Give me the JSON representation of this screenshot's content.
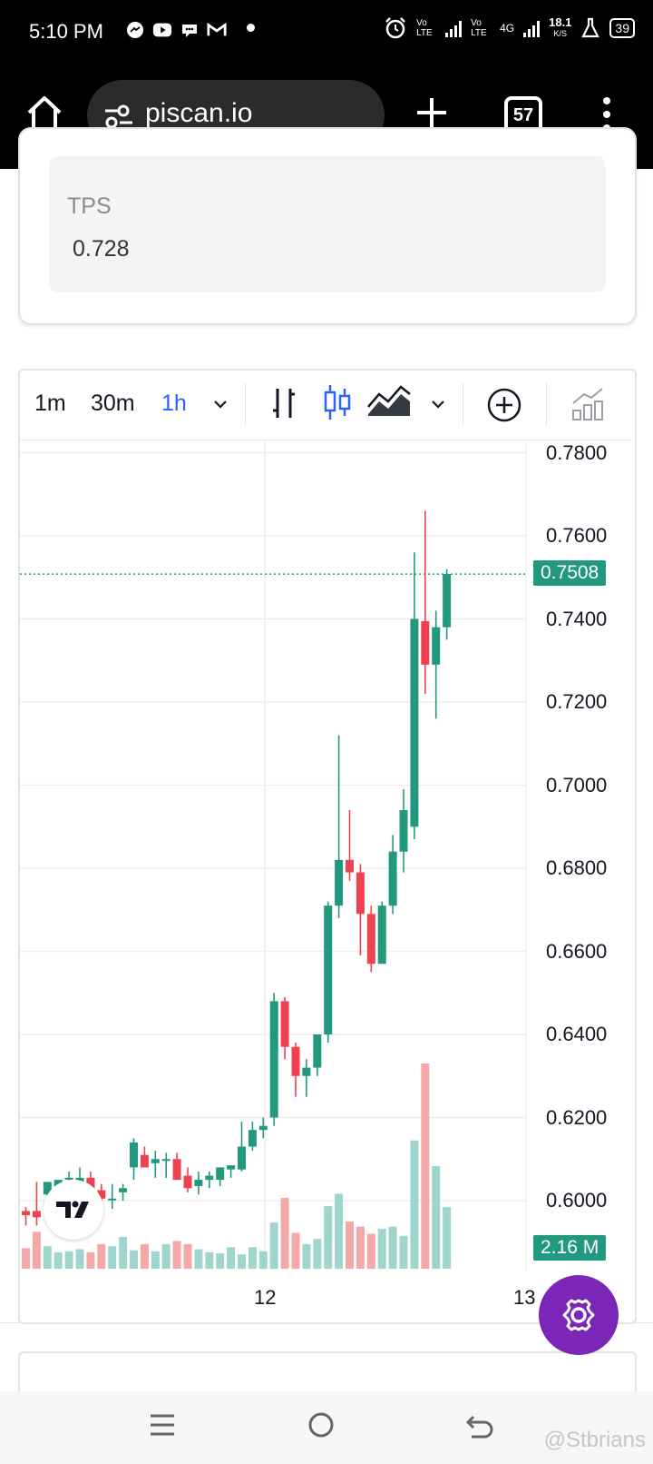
{
  "status_bar": {
    "time": "5:10 PM",
    "network1": "Vo LTE",
    "network2": "Vo LTE",
    "net_type": "4G",
    "speed": "18.1",
    "speed_unit": "K/S",
    "battery": "39"
  },
  "browser": {
    "url": "piscan.io",
    "tab_count": "57"
  },
  "stats": {
    "tps_label": "TPS",
    "tps_value": "0.728"
  },
  "chart_toolbar": {
    "intervals": [
      "1m",
      "30m",
      "1h"
    ],
    "active_interval": "1h"
  },
  "chart_data": {
    "type": "candlestick",
    "price_axis_ticks": [
      "0.7800",
      "0.7600",
      "0.7400",
      "0.7200",
      "0.7000",
      "0.6800",
      "0.6600",
      "0.6400",
      "0.6200",
      "0.6000"
    ],
    "time_axis_ticks": [
      "12",
      "13"
    ],
    "last_price": "0.7508",
    "last_volume": "2.16 M",
    "ylim": [
      0.585,
      0.78
    ],
    "candles": [
      {
        "o": 0.5975,
        "h": 0.5985,
        "l": 0.594,
        "c": 0.5965
      },
      {
        "o": 0.5975,
        "h": 0.6045,
        "l": 0.594,
        "c": 0.596
      },
      {
        "o": 0.6015,
        "h": 0.6045,
        "l": 0.599,
        "c": 0.6045
      },
      {
        "o": 0.603,
        "h": 0.605,
        "l": 0.601,
        "c": 0.605
      },
      {
        "o": 0.6055,
        "h": 0.607,
        "l": 0.603,
        "c": 0.6055
      },
      {
        "o": 0.604,
        "h": 0.608,
        "l": 0.6,
        "c": 0.6055
      },
      {
        "o": 0.6055,
        "h": 0.607,
        "l": 0.602,
        "c": 0.602
      },
      {
        "o": 0.6025,
        "h": 0.604,
        "l": 0.5995,
        "c": 0.6005
      },
      {
        "o": 0.6005,
        "h": 0.604,
        "l": 0.598,
        "c": 0.6005
      },
      {
        "o": 0.602,
        "h": 0.604,
        "l": 0.6,
        "c": 0.603
      },
      {
        "o": 0.608,
        "h": 0.615,
        "l": 0.605,
        "c": 0.614
      },
      {
        "o": 0.611,
        "h": 0.613,
        "l": 0.608,
        "c": 0.608
      },
      {
        "o": 0.609,
        "h": 0.612,
        "l": 0.6055,
        "c": 0.61
      },
      {
        "o": 0.61,
        "h": 0.6115,
        "l": 0.6055,
        "c": 0.61
      },
      {
        "o": 0.61,
        "h": 0.6115,
        "l": 0.605,
        "c": 0.605
      },
      {
        "o": 0.606,
        "h": 0.608,
        "l": 0.602,
        "c": 0.603
      },
      {
        "o": 0.6035,
        "h": 0.607,
        "l": 0.6015,
        "c": 0.605
      },
      {
        "o": 0.605,
        "h": 0.607,
        "l": 0.603,
        "c": 0.606
      },
      {
        "o": 0.605,
        "h": 0.608,
        "l": 0.6035,
        "c": 0.608
      },
      {
        "o": 0.6075,
        "h": 0.6085,
        "l": 0.6055,
        "c": 0.6085
      },
      {
        "o": 0.6075,
        "h": 0.619,
        "l": 0.607,
        "c": 0.613
      },
      {
        "o": 0.613,
        "h": 0.619,
        "l": 0.612,
        "c": 0.617
      },
      {
        "o": 0.617,
        "h": 0.62,
        "l": 0.615,
        "c": 0.618
      },
      {
        "o": 0.62,
        "h": 0.65,
        "l": 0.618,
        "c": 0.648
      },
      {
        "o": 0.648,
        "h": 0.649,
        "l": 0.634,
        "c": 0.637
      },
      {
        "o": 0.637,
        "h": 0.638,
        "l": 0.625,
        "c": 0.63
      },
      {
        "o": 0.63,
        "h": 0.634,
        "l": 0.625,
        "c": 0.632
      },
      {
        "o": 0.632,
        "h": 0.64,
        "l": 0.63,
        "c": 0.64
      },
      {
        "o": 0.64,
        "h": 0.672,
        "l": 0.638,
        "c": 0.671
      },
      {
        "o": 0.671,
        "h": 0.712,
        "l": 0.668,
        "c": 0.682
      },
      {
        "o": 0.682,
        "h": 0.694,
        "l": 0.677,
        "c": 0.679
      },
      {
        "o": 0.679,
        "h": 0.681,
        "l": 0.659,
        "c": 0.669
      },
      {
        "o": 0.669,
        "h": 0.671,
        "l": 0.655,
        "c": 0.657
      },
      {
        "o": 0.657,
        "h": 0.672,
        "l": 0.657,
        "c": 0.671
      },
      {
        "o": 0.671,
        "h": 0.688,
        "l": 0.669,
        "c": 0.684
      },
      {
        "o": 0.684,
        "h": 0.699,
        "l": 0.679,
        "c": 0.694
      },
      {
        "o": 0.69,
        "h": 0.756,
        "l": 0.687,
        "c": 0.74
      },
      {
        "o": 0.7395,
        "h": 0.766,
        "l": 0.722,
        "c": 0.729
      },
      {
        "o": 0.729,
        "h": 0.742,
        "l": 0.716,
        "c": 0.738
      },
      {
        "o": 0.738,
        "h": 0.752,
        "l": 0.735,
        "c": 0.7508
      }
    ],
    "volumes": [
      0.2,
      0.36,
      0.22,
      0.16,
      0.17,
      0.19,
      0.16,
      0.24,
      0.22,
      0.31,
      0.18,
      0.24,
      0.17,
      0.24,
      0.27,
      0.24,
      0.19,
      0.16,
      0.15,
      0.21,
      0.14,
      0.21,
      0.17,
      0.45,
      0.69,
      0.35,
      0.24,
      0.29,
      0.61,
      0.73,
      0.46,
      0.41,
      0.34,
      0.39,
      0.41,
      0.32,
      1.25,
      2.0,
      1.0,
      0.6
    ]
  },
  "colors": {
    "up": "#22997f",
    "down": "#ef4150",
    "up_volume": "#9fd5cc",
    "down_volume": "#f4a8a8",
    "accent_purple": "#7b26b7",
    "active_blue": "#2962ff"
  },
  "watermark": "@Stbrians"
}
